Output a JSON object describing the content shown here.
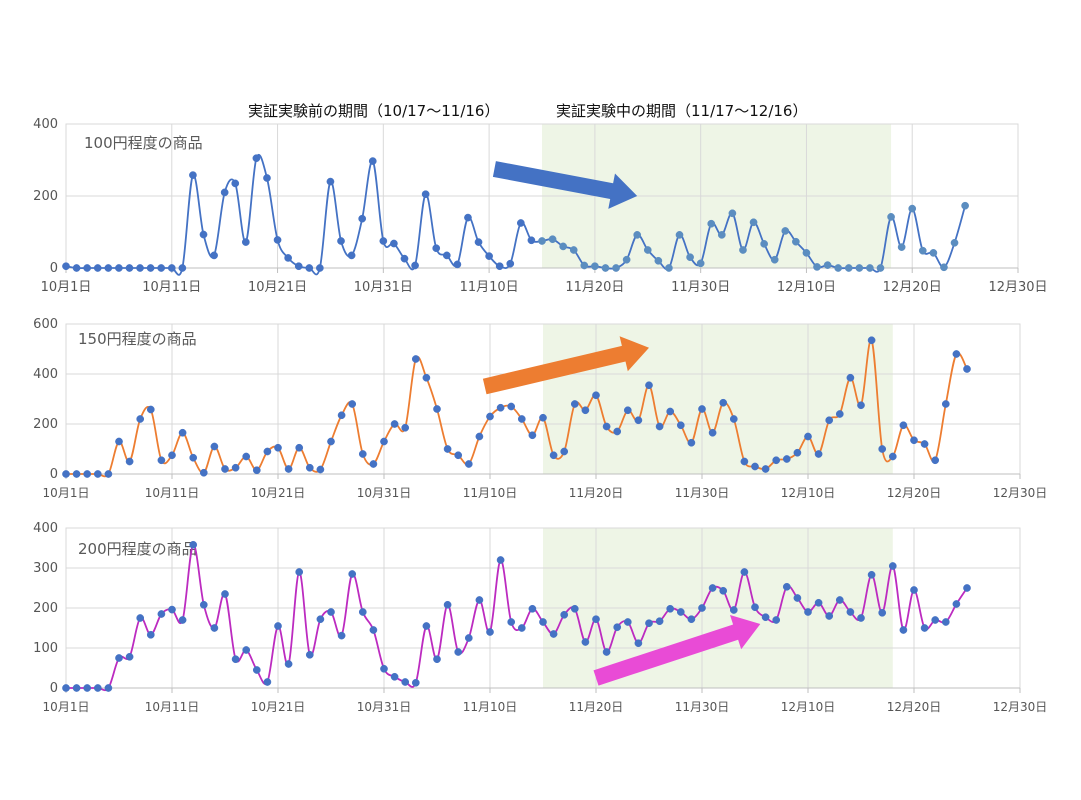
{
  "header": {
    "before_label": "実証実験前の期間（10/17～11/16）",
    "during_label": "実証実験中の期間（11/17～12/16）"
  },
  "chart_data": [
    {
      "type": "line",
      "title": "100円程度の商品",
      "ylim": [
        0,
        400
      ],
      "yticks": [
        0,
        200,
        400
      ],
      "xlim": [
        1,
        91
      ],
      "xticks": [
        {
          "day": 1,
          "label": "10月1日"
        },
        {
          "day": 11,
          "label": "10月11日"
        },
        {
          "day": 21,
          "label": "10月21日"
        },
        {
          "day": 31,
          "label": "10月31日"
        },
        {
          "day": 41,
          "label": "11月10日"
        },
        {
          "day": 51,
          "label": "11月20日"
        },
        {
          "day": 61,
          "label": "11月30日"
        },
        {
          "day": 71,
          "label": "12月10日"
        },
        {
          "day": 81,
          "label": "12月20日"
        },
        {
          "day": 91,
          "label": "12月30日"
        }
      ],
      "shade": [
        46,
        79
      ],
      "grid": true,
      "colors": {
        "line": "#4472C4",
        "marker": "#4472C4",
        "marker_late": "#5B8DC0",
        "arrow": "#4472C4",
        "shade": "#EEF5E6"
      },
      "x_start_day": 1,
      "values": [
        5,
        0,
        0,
        0,
        0,
        0,
        0,
        0,
        0,
        0,
        0,
        0,
        258,
        93,
        35,
        210,
        235,
        72,
        305,
        250,
        78,
        28,
        5,
        0,
        0,
        240,
        75,
        35,
        137,
        297,
        75,
        68,
        26,
        7,
        205,
        55,
        35,
        10,
        140,
        72,
        33,
        5,
        12,
        125,
        77,
        75,
        80,
        60,
        50,
        7,
        5,
        0,
        0,
        23,
        92,
        50,
        20,
        0,
        92,
        30,
        13,
        123,
        92,
        152,
        50,
        127,
        67,
        23,
        103,
        73,
        42,
        3,
        8,
        0,
        0,
        0,
        0,
        0,
        142,
        58,
        165,
        48,
        42,
        2,
        70,
        173
      ],
      "arrow": {
        "from": [
          41.5,
          275
        ],
        "to": [
          55,
          200
        ]
      }
    },
    {
      "type": "line",
      "title": "150円程度の商品",
      "ylim": [
        0,
        600
      ],
      "yticks": [
        0,
        200,
        400,
        600
      ],
      "xlim": [
        1,
        91
      ],
      "xticks": [
        {
          "day": 1,
          "label": "10月1日"
        },
        {
          "day": 11,
          "label": "10月11日"
        },
        {
          "day": 21,
          "label": "10月21日"
        },
        {
          "day": 31,
          "label": "10月31日"
        },
        {
          "day": 41,
          "label": "11月10日"
        },
        {
          "day": 51,
          "label": "11月20日"
        },
        {
          "day": 61,
          "label": "11月30日"
        },
        {
          "day": 71,
          "label": "12月10日"
        },
        {
          "day": 81,
          "label": "12月20日"
        },
        {
          "day": 91,
          "label": "12月30日"
        }
      ],
      "shade": [
        46,
        79
      ],
      "grid": true,
      "colors": {
        "line": "#ED7D31",
        "marker": "#4472C4",
        "arrow": "#ED7D31",
        "shade": "#EEF5E6"
      },
      "x_start_day": 1,
      "values": [
        0,
        0,
        0,
        0,
        0,
        130,
        50,
        220,
        258,
        55,
        75,
        165,
        65,
        5,
        110,
        20,
        25,
        70,
        15,
        90,
        105,
        20,
        105,
        25,
        18,
        130,
        235,
        280,
        80,
        40,
        130,
        200,
        185,
        460,
        385,
        260,
        100,
        75,
        40,
        150,
        230,
        265,
        270,
        220,
        155,
        225,
        75,
        90,
        280,
        255,
        315,
        190,
        170,
        255,
        215,
        355,
        190,
        250,
        195,
        125,
        260,
        165,
        285,
        220,
        50,
        30,
        20,
        55,
        60,
        85,
        150,
        80,
        215,
        240,
        385,
        275,
        535,
        100,
        70,
        195,
        135,
        120,
        55,
        280,
        480,
        420
      ],
      "arrow": {
        "from": [
          40.5,
          350
        ],
        "to": [
          56,
          505
        ]
      }
    },
    {
      "type": "line",
      "title": "200円程度の商品",
      "ylim": [
        0,
        400
      ],
      "yticks": [
        0,
        100,
        200,
        300,
        400
      ],
      "xlim": [
        1,
        91
      ],
      "xticks": [
        {
          "day": 1,
          "label": "10月1日"
        },
        {
          "day": 11,
          "label": "10月11日"
        },
        {
          "day": 21,
          "label": "10月21日"
        },
        {
          "day": 31,
          "label": "10月31日"
        },
        {
          "day": 41,
          "label": "11月10日"
        },
        {
          "day": 51,
          "label": "11月20日"
        },
        {
          "day": 61,
          "label": "11月30日"
        },
        {
          "day": 71,
          "label": "12月10日"
        },
        {
          "day": 81,
          "label": "12月20日"
        },
        {
          "day": 91,
          "label": "12月30日"
        }
      ],
      "shade": [
        46,
        79
      ],
      "grid": true,
      "colors": {
        "line": "#BC2BC0",
        "marker": "#4472C4",
        "arrow": "#E94BD6",
        "shade": "#EEF5E6"
      },
      "x_start_day": 1,
      "values": [
        0,
        0,
        0,
        0,
        0,
        75,
        78,
        175,
        133,
        185,
        196,
        170,
        358,
        208,
        150,
        235,
        72,
        95,
        45,
        15,
        155,
        60,
        290,
        83,
        172,
        190,
        131,
        285,
        190,
        145,
        48,
        28,
        15,
        13,
        155,
        72,
        208,
        90,
        125,
        220,
        140,
        320,
        165,
        150,
        198,
        165,
        135,
        183,
        198,
        115,
        172,
        90,
        152,
        165,
        112,
        162,
        167,
        198,
        190,
        172,
        200,
        250,
        243,
        195,
        290,
        202,
        177,
        170,
        253,
        225,
        190,
        213,
        180,
        220,
        190,
        175,
        283,
        188,
        305,
        145,
        245,
        150,
        170,
        165,
        210,
        250
      ],
      "arrow": {
        "from": [
          51,
          25
        ],
        "to": [
          66.5,
          160
        ]
      }
    }
  ]
}
